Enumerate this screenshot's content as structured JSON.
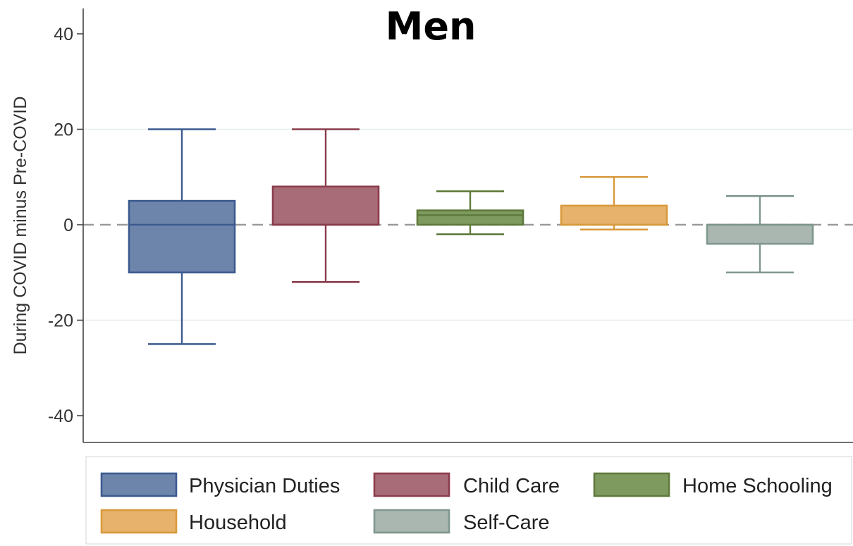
{
  "chart_data": {
    "type": "box",
    "title": "Men",
    "xlabel": "",
    "ylabel": "During COVID minus Pre-COVID",
    "ylim": [
      -45,
      45
    ],
    "yticks": [
      40,
      20,
      0,
      -20,
      -40
    ],
    "grid": "horizontal",
    "reference_line": 0,
    "legend_position": "bottom",
    "series": [
      {
        "name": "Physician Duties",
        "whisker_low": -25,
        "q1": -10,
        "median": 0,
        "q3": 5,
        "whisker_high": 20,
        "color": "#6d84ab"
      },
      {
        "name": "Child Care",
        "whisker_low": -12,
        "q1": 0,
        "median": 0,
        "q3": 8,
        "whisker_high": 20,
        "color": "#a86c78"
      },
      {
        "name": "Home Schooling",
        "whisker_low": -2,
        "q1": 0,
        "median": 2,
        "q3": 3,
        "whisker_high": 7,
        "color": "#7e9a5e"
      },
      {
        "name": "Household",
        "whisker_low": -1,
        "q1": 0,
        "median": 0,
        "q3": 4,
        "whisker_high": 10,
        "color": "#e6b26c"
      },
      {
        "name": "Self-Care",
        "whisker_low": -10,
        "q1": -4,
        "median": 0,
        "q3": 0,
        "whisker_high": 6,
        "color": "#a9b7b0"
      }
    ],
    "stroke_colors": [
      "#3c5a8f",
      "#8a3c4c",
      "#5e7a3c",
      "#d99a3c",
      "#7f978e"
    ]
  }
}
